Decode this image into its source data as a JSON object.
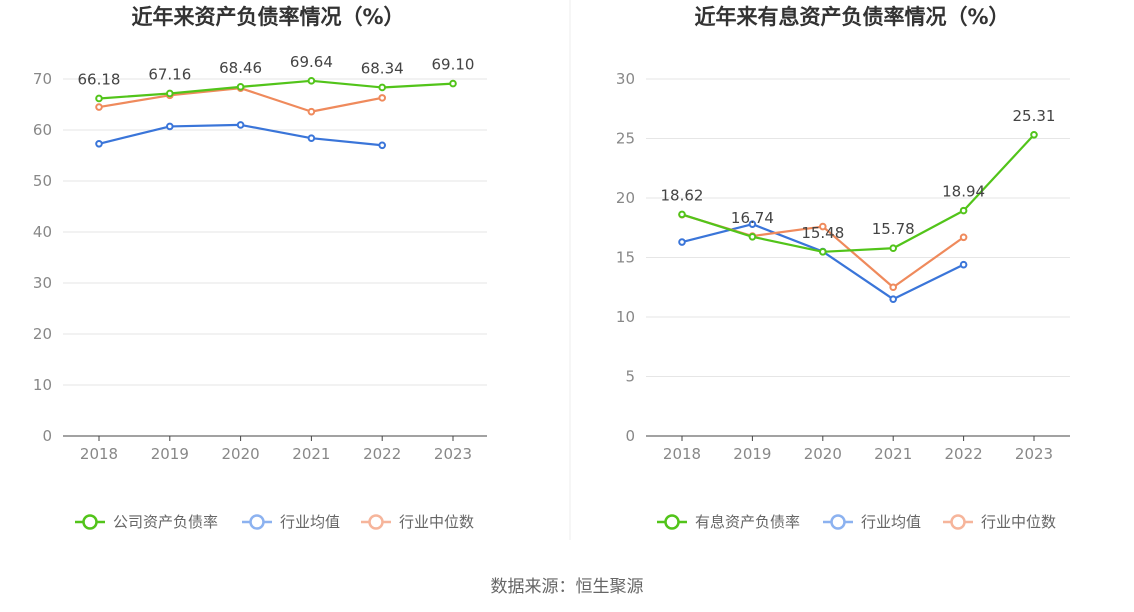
{
  "colors": {
    "company": "#52c41a",
    "industry_avg": "#3a75d9",
    "industry_median": "#ef8a5c",
    "legend_avg": "#8cb2f0",
    "legend_median": "#f6b59b",
    "grid": "#e6e6e6",
    "axis": "#444444"
  },
  "source": "数据来源：恒生聚源",
  "chart_data": [
    {
      "type": "line",
      "title": "近年来资产负债率情况（%）",
      "categories": [
        "2018",
        "2019",
        "2020",
        "2021",
        "2022",
        "2023"
      ],
      "ylim": [
        0,
        70
      ],
      "yticks": [
        0,
        10,
        20,
        30,
        40,
        50,
        60,
        70
      ],
      "grid": true,
      "legend_position": "bottom",
      "series": [
        {
          "name": "公司资产负债率",
          "color_key": "company",
          "labels": true,
          "values": [
            66.18,
            67.16,
            68.46,
            69.64,
            68.34,
            69.1
          ]
        },
        {
          "name": "行业均值",
          "color_key": "industry_avg",
          "labels": false,
          "values": [
            57.3,
            60.7,
            61.0,
            58.4,
            57.0,
            null
          ]
        },
        {
          "name": "行业中位数",
          "color_key": "industry_median",
          "labels": false,
          "values": [
            64.5,
            66.8,
            68.2,
            63.6,
            66.3,
            null
          ]
        }
      ]
    },
    {
      "type": "line",
      "title": "近年来有息资产负债率情况（%）",
      "categories": [
        "2018",
        "2019",
        "2020",
        "2021",
        "2022",
        "2023"
      ],
      "ylim": [
        0,
        30
      ],
      "yticks": [
        0,
        5,
        10,
        15,
        20,
        25,
        30
      ],
      "grid": true,
      "legend_position": "bottom",
      "series": [
        {
          "name": "有息资产负债率",
          "color_key": "company",
          "labels": true,
          "values": [
            18.62,
            16.74,
            15.48,
            15.78,
            18.94,
            25.31
          ]
        },
        {
          "name": "行业均值",
          "color_key": "industry_avg",
          "labels": false,
          "values": [
            16.3,
            17.8,
            15.5,
            11.5,
            14.4,
            null
          ]
        },
        {
          "name": "行业中位数",
          "color_key": "industry_median",
          "labels": false,
          "values": [
            18.6,
            16.8,
            17.6,
            12.5,
            16.7,
            null
          ]
        }
      ]
    }
  ]
}
